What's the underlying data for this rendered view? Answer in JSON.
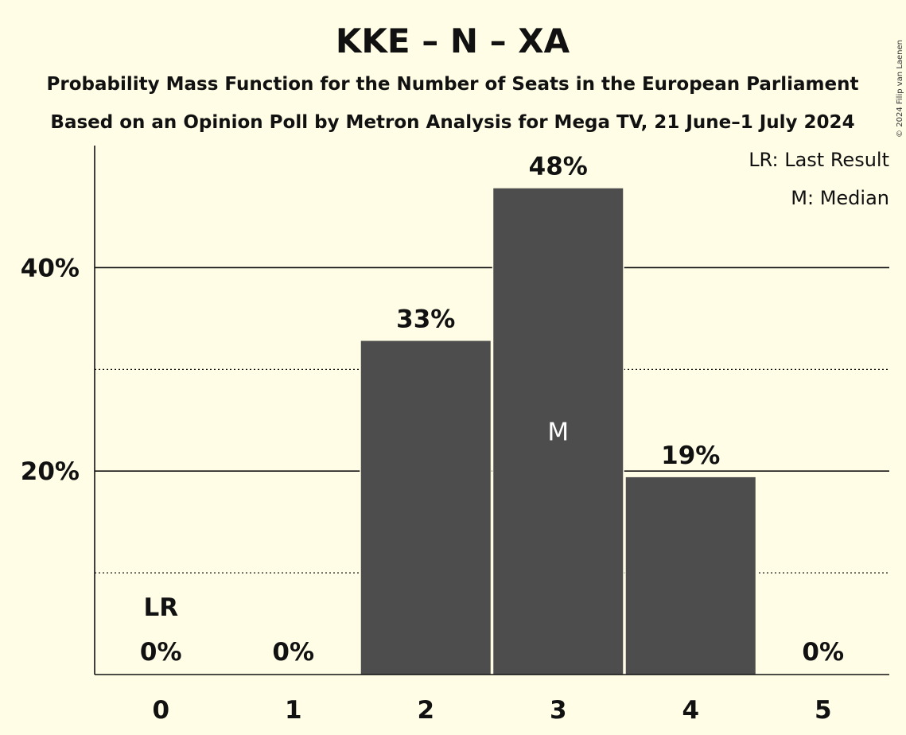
{
  "chart_data": {
    "type": "bar",
    "title": "KKE – N – XA",
    "subtitle_1": "Probability Mass Function for the Number of Seats in the European Parliament",
    "subtitle_2": "Based on an Opinion Poll by Metron Analysis for Mega TV, 21 June–1 July 2024",
    "categories": [
      "0",
      "1",
      "2",
      "3",
      "4",
      "5"
    ],
    "values": [
      0,
      0,
      32.8,
      47.8,
      19.4,
      0
    ],
    "value_labels": [
      "0%",
      "0%",
      "33%",
      "48%",
      "19%",
      "0%"
    ],
    "ylim": [
      0,
      52
    ],
    "yticks": [
      20,
      40
    ],
    "ytick_labels": [
      "20%",
      "40%"
    ],
    "minor_gridlines": [
      10,
      30
    ],
    "last_result_category": "0",
    "last_result_marker": "LR",
    "median_category": "3",
    "median_marker": "M",
    "legend": [
      "LR: Last Result",
      "M: Median"
    ],
    "legend_position": "top-right",
    "bar_color": "#4d4d4d",
    "background_color": "#fffde6"
  },
  "copyright": "© 2024 Filip van Laenen"
}
